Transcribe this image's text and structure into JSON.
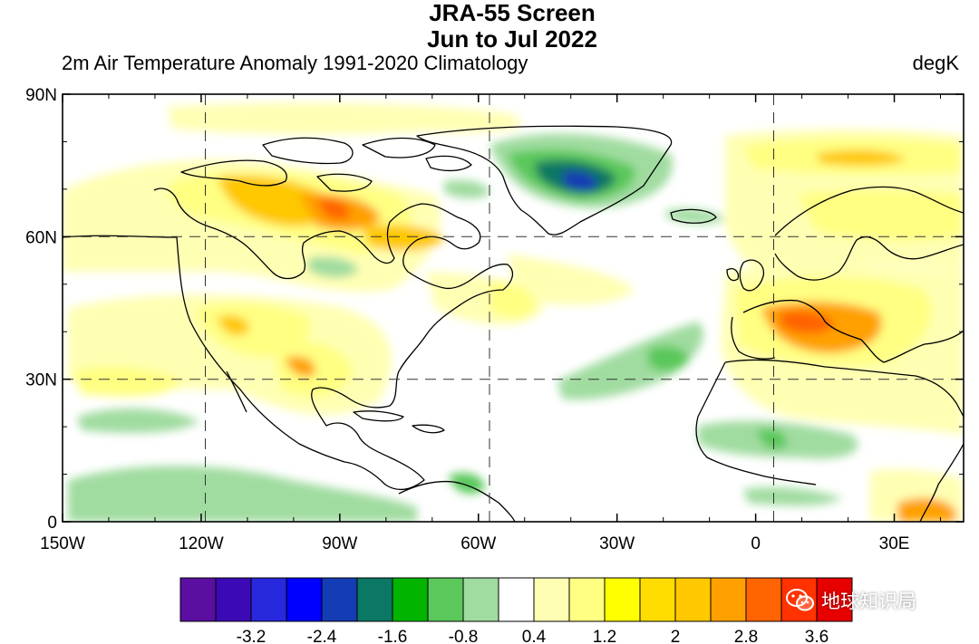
{
  "figure": {
    "title_line1": "JRA-55 Screen",
    "title_line2": "Jun to Jul 2022",
    "subtitle_left": "2m Air Temperature Anomaly  1991-2020 Climatology",
    "units": "degK"
  },
  "map": {
    "lat_labels": [
      "90N",
      "60N",
      "30N",
      "0"
    ],
    "lon_labels": [
      "150W",
      "120W",
      "90W",
      "60W",
      "30W",
      "0",
      "30E"
    ],
    "lat_values": [
      90,
      60,
      30,
      0
    ],
    "lon_values": [
      -150,
      -120,
      -90,
      -60,
      -30,
      0,
      30
    ]
  },
  "colorbar": {
    "colors": [
      "#5a0fa0",
      "#3c0ab4",
      "#2828dc",
      "#0000ff",
      "#143cb4",
      "#0a7864",
      "#00b400",
      "#5ac85a",
      "#a0dca0",
      "#ffffff",
      "#ffffb4",
      "#ffff82",
      "#ffff00",
      "#ffdc00",
      "#ffc800",
      "#ffa000",
      "#ff6400",
      "#ff3200",
      "#e60000"
    ],
    "tick_labels": [
      "-3.2",
      "-2.4",
      "-1.6",
      "-0.8",
      "0.4",
      "1.2",
      "2",
      "2.8",
      "3.6"
    ]
  },
  "watermark": {
    "icon": "wechat-icon",
    "text": "地球知识局"
  }
}
